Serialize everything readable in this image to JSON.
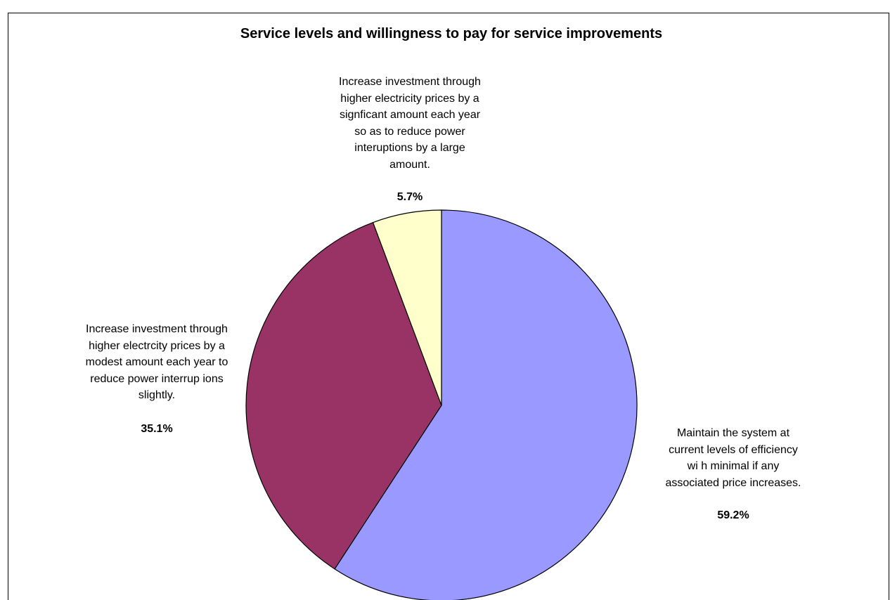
{
  "chart_data": {
    "type": "pie",
    "title": "Service levels and willingness to pay for service improvements",
    "start_angle_deg": 0,
    "direction": "clockwise",
    "slices": [
      {
        "label": "Maintain the system at\ncurrent levels of efficiency\nwi h minimal if any\nassociated price increases.",
        "value": 59.2,
        "value_label": "59.2%",
        "color": "#9999FF"
      },
      {
        "label": "Increase investment through\nhigher electrcity prices by a\nmodest amount each year to\nreduce power interrup ions\nslightly.",
        "value": 35.1,
        "value_label": "35.1%",
        "color": "#993366"
      },
      {
        "label": "Increase investment through\nhigher electricity prices by a\nsignficant amount each year\nso as to reduce power\ninteruptions by a large\namount.",
        "value": 5.7,
        "value_label": "5.7%",
        "color": "#FFFFCC"
      }
    ]
  }
}
